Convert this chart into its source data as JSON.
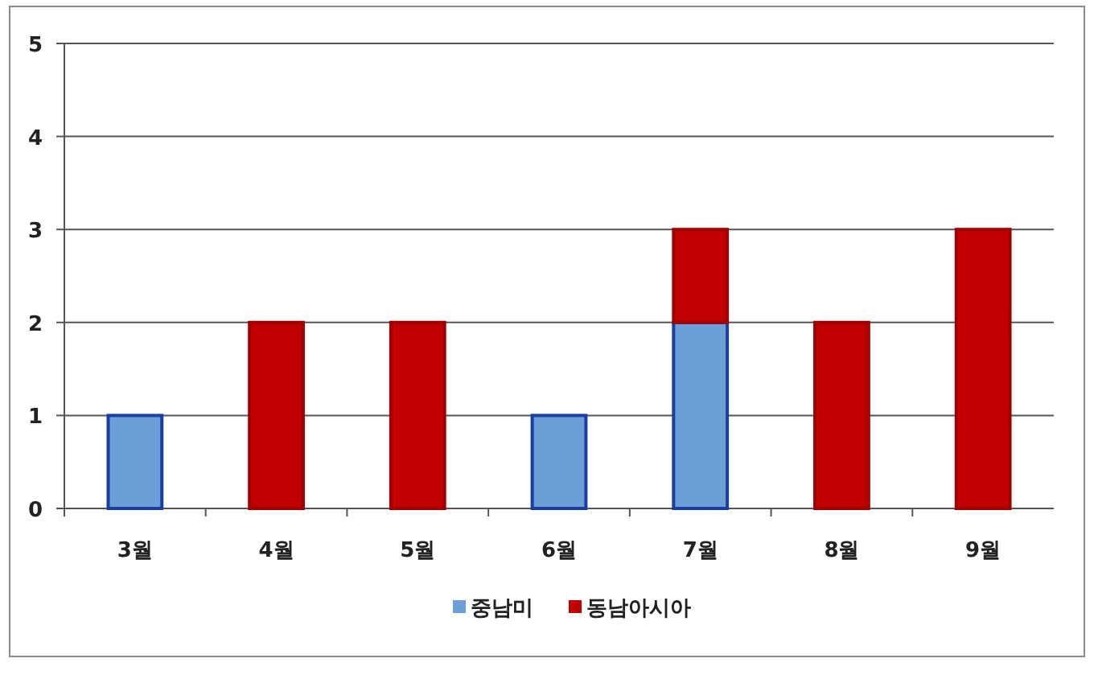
{
  "chart_data": {
    "type": "bar",
    "stacked": true,
    "categories": [
      "3월",
      "4월",
      "5월",
      "6월",
      "7월",
      "8월",
      "9월"
    ],
    "series": [
      {
        "name": "중남미",
        "color": "#6a9fd8",
        "values": [
          1,
          null,
          null,
          1,
          2,
          null,
          null
        ]
      },
      {
        "name": "동남아시아",
        "color": "#c00000",
        "values": [
          null,
          2,
          2,
          null,
          1,
          2,
          3
        ]
      }
    ],
    "ylim": [
      0,
      5
    ],
    "yticks": [
      0,
      1,
      2,
      3,
      4,
      5
    ],
    "grid": "y",
    "legend": "bottom"
  }
}
